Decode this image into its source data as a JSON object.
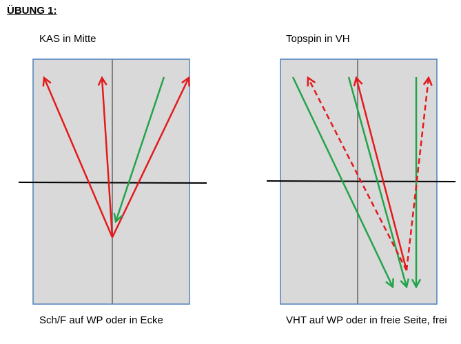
{
  "header": {
    "title": "ÜBUNG 1:"
  },
  "panels": [
    {
      "label": "KAS in Mitte",
      "caption": "Sch/F auf WP oder in Ecke"
    },
    {
      "label": "Topspin in VH",
      "caption": "VHT auf WP oder in freie Seite, frei"
    }
  ]
}
